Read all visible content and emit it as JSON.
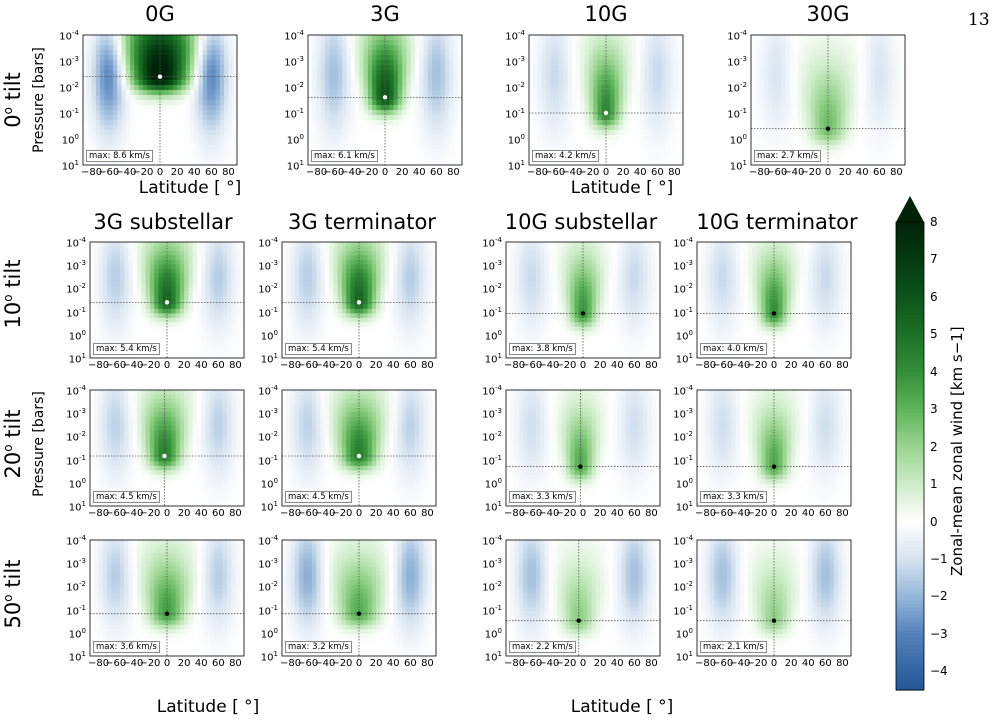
{
  "page_number": "13",
  "colors": {
    "negative": "#2c5fa0",
    "positive": "#0b5a1a",
    "zero": "#ffffff"
  },
  "row_labels": [
    "0o tilt",
    "10o tilt",
    "20o tilt",
    "50o tilt"
  ],
  "y_axis_label": "Pressure [bars]",
  "x_axis_label": "Latitude [ °]",
  "y_ticks": [
    "10-4",
    "10-3",
    "10-2",
    "10-1",
    "100",
    "101"
  ],
  "x_ticks": [
    "−80",
    "−60",
    "−40",
    "−20",
    "0",
    "20",
    "40",
    "60",
    "80"
  ],
  "colorbar": {
    "label": "Zonal-mean zonal wind [km s−1]",
    "ticks": [
      "8",
      "7",
      "6",
      "5",
      "4",
      "3",
      "2",
      "1",
      "0",
      "−1",
      "−2",
      "−3",
      "−4"
    ],
    "range": [
      -4.5,
      8
    ]
  },
  "panels": [
    {
      "title": "0G",
      "max_label": "max: 8.6 km/s"
    },
    {
      "title": "3G",
      "max_label": "max: 6.1 km/s"
    },
    {
      "title": "10G",
      "max_label": "max: 4.2 km/s"
    },
    {
      "title": "30G",
      "max_label": "max: 2.7 km/s"
    },
    {
      "title": "3G substellar",
      "max_label": "max: 5.4 km/s"
    },
    {
      "title": "3G terminator",
      "max_label": "max: 5.4 km/s"
    },
    {
      "title": "10G substellar",
      "max_label": "max: 3.8 km/s"
    },
    {
      "title": "10G terminator",
      "max_label": "max: 4.0 km/s"
    },
    {
      "title": "",
      "max_label": "max: 4.5 km/s"
    },
    {
      "title": "",
      "max_label": "max: 4.5 km/s"
    },
    {
      "title": "",
      "max_label": "max: 3.3 km/s"
    },
    {
      "title": "",
      "max_label": "max: 3.3 km/s"
    },
    {
      "title": "",
      "max_label": "max: 3.6 km/s"
    },
    {
      "title": "",
      "max_label": "max: 3.2 km/s"
    },
    {
      "title": "",
      "max_label": "max: 2.2 km/s"
    },
    {
      "title": "",
      "max_label": "max: 2.1 km/s"
    }
  ],
  "chart_data": {
    "type": "heatmap",
    "x_axis": {
      "label": "Latitude [ °]",
      "range": [
        -90,
        90
      ]
    },
    "y_axis": {
      "label": "Pressure [bars]",
      "range": [
        0.0001,
        10
      ],
      "scale": "log",
      "inverted": true
    },
    "colorbar_label": "Zonal-mean zonal wind [km s−1]",
    "color_range": [
      -4.5,
      8
    ],
    "panels": [
      {
        "row": "0o tilt",
        "case": "0G",
        "max_wind_km_s": 8.6,
        "jet_peak_lat": 0,
        "jet_peak_pressure_bar": 0.004,
        "jet_halfwidth_deg": 30,
        "westward_min_km_s": -3.0
      },
      {
        "row": "0o tilt",
        "case": "3G",
        "max_wind_km_s": 6.1,
        "jet_peak_lat": 0,
        "jet_peak_pressure_bar": 0.025,
        "jet_halfwidth_deg": 18,
        "westward_min_km_s": -1.8
      },
      {
        "row": "0o tilt",
        "case": "10G",
        "max_wind_km_s": 4.2,
        "jet_peak_lat": 0,
        "jet_peak_pressure_bar": 0.1,
        "jet_halfwidth_deg": 16,
        "westward_min_km_s": -1.2
      },
      {
        "row": "0o tilt",
        "case": "30G",
        "max_wind_km_s": 2.7,
        "jet_peak_lat": 0,
        "jet_peak_pressure_bar": 0.4,
        "jet_halfwidth_deg": 20,
        "westward_min_km_s": -0.9
      },
      {
        "row": "10o tilt",
        "case": "3G substellar",
        "max_wind_km_s": 5.4,
        "jet_peak_lat": 0,
        "jet_peak_pressure_bar": 0.04,
        "jet_halfwidth_deg": 18,
        "westward_min_km_s": -1.5
      },
      {
        "row": "10o tilt",
        "case": "3G terminator",
        "max_wind_km_s": 5.4,
        "jet_peak_lat": 0,
        "jet_peak_pressure_bar": 0.04,
        "jet_halfwidth_deg": 18,
        "westward_min_km_s": -1.5
      },
      {
        "row": "10o tilt",
        "case": "10G substellar",
        "max_wind_km_s": 3.8,
        "jet_peak_lat": 0,
        "jet_peak_pressure_bar": 0.12,
        "jet_halfwidth_deg": 15,
        "westward_min_km_s": -1.2
      },
      {
        "row": "10o tilt",
        "case": "10G terminator",
        "max_wind_km_s": 4.0,
        "jet_peak_lat": 0,
        "jet_peak_pressure_bar": 0.12,
        "jet_halfwidth_deg": 15,
        "westward_min_km_s": -1.2
      },
      {
        "row": "20o tilt",
        "case": "3G substellar",
        "max_wind_km_s": 4.5,
        "jet_peak_lat": -3,
        "jet_peak_pressure_bar": 0.07,
        "jet_halfwidth_deg": 18,
        "westward_min_km_s": -1.4
      },
      {
        "row": "20o tilt",
        "case": "3G terminator",
        "max_wind_km_s": 4.5,
        "jet_peak_lat": 0,
        "jet_peak_pressure_bar": 0.07,
        "jet_halfwidth_deg": 20,
        "westward_min_km_s": -1.4
      },
      {
        "row": "20o tilt",
        "case": "10G substellar",
        "max_wind_km_s": 3.3,
        "jet_peak_lat": -3,
        "jet_peak_pressure_bar": 0.2,
        "jet_halfwidth_deg": 15,
        "westward_min_km_s": -1.1
      },
      {
        "row": "20o tilt",
        "case": "10G terminator",
        "max_wind_km_s": 3.3,
        "jet_peak_lat": 0,
        "jet_peak_pressure_bar": 0.2,
        "jet_halfwidth_deg": 16,
        "westward_min_km_s": -1.1
      },
      {
        "row": "50o tilt",
        "case": "3G substellar",
        "max_wind_km_s": 3.6,
        "jet_peak_lat": 0,
        "jet_peak_pressure_bar": 0.15,
        "jet_halfwidth_deg": 20,
        "westward_min_km_s": -1.5
      },
      {
        "row": "50o tilt",
        "case": "3G terminator",
        "max_wind_km_s": 3.2,
        "jet_peak_lat": 0,
        "jet_peak_pressure_bar": 0.15,
        "jet_halfwidth_deg": 22,
        "westward_min_km_s": -2.2
      },
      {
        "row": "50o tilt",
        "case": "10G substellar",
        "max_wind_km_s": 2.2,
        "jet_peak_lat": -5,
        "jet_peak_pressure_bar": 0.3,
        "jet_halfwidth_deg": 18,
        "westward_min_km_s": -1.8
      },
      {
        "row": "50o tilt",
        "case": "10G terminator",
        "max_wind_km_s": 2.1,
        "jet_peak_lat": 0,
        "jet_peak_pressure_bar": 0.3,
        "jet_halfwidth_deg": 18,
        "westward_min_km_s": -1.8
      }
    ]
  }
}
